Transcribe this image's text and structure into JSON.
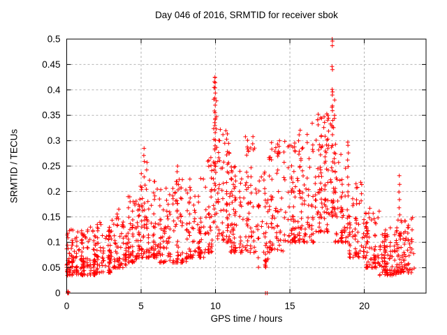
{
  "window": {
    "background": "#ffffff"
  },
  "chart_data": {
    "type": "scatter",
    "title": "Day 046 of 2016, SRMTID for receiver sbok",
    "xlabel": "GPS time / hours",
    "ylabel": "SRMTID / TECUs",
    "marker": "plus",
    "marker_size_px": 7,
    "seed": 46,
    "colors": {
      "marker": "#ff0000",
      "grid": "#b3b3b3",
      "axis": "#000000",
      "text": "#000000"
    },
    "axes": {
      "xlim": [
        0,
        24.15
      ],
      "ylim": [
        0,
        0.5
      ],
      "grid": true,
      "xticks": [
        {
          "v": 0,
          "label": "0"
        },
        {
          "v": 5,
          "label": "5"
        },
        {
          "v": 10,
          "label": "10"
        },
        {
          "v": 15,
          "label": "15"
        },
        {
          "v": 20,
          "label": "20"
        }
      ],
      "yticks": [
        {
          "v": 0,
          "label": "0"
        },
        {
          "v": 0.05,
          "label": "0.05"
        },
        {
          "v": 0.1,
          "label": "0.1"
        },
        {
          "v": 0.15,
          "label": "0.15"
        },
        {
          "v": 0.2,
          "label": "0.2"
        },
        {
          "v": 0.25,
          "label": "0.25"
        },
        {
          "v": 0.3,
          "label": "0.3"
        },
        {
          "v": 0.35,
          "label": "0.35"
        },
        {
          "v": 0.4,
          "label": "0.4"
        },
        {
          "v": 0.45,
          "label": "0.45"
        },
        {
          "v": 0.5,
          "label": "0.5"
        }
      ]
    },
    "point_bands": [
      [
        0.0,
        1.0,
        90,
        0.035,
        0.125,
        1.8
      ],
      [
        1.0,
        2.0,
        85,
        0.035,
        0.125,
        1.8
      ],
      [
        2.0,
        3.0,
        80,
        0.04,
        0.14,
        1.9
      ],
      [
        3.0,
        4.0,
        70,
        0.05,
        0.16,
        1.9
      ],
      [
        4.0,
        4.7,
        55,
        0.06,
        0.19,
        1.7
      ],
      [
        4.7,
        5.4,
        60,
        0.07,
        0.26,
        1.8
      ],
      [
        5.4,
        6.2,
        55,
        0.07,
        0.24,
        1.9
      ],
      [
        6.2,
        7.2,
        65,
        0.06,
        0.21,
        1.9
      ],
      [
        7.2,
        8.2,
        65,
        0.06,
        0.23,
        1.9
      ],
      [
        8.2,
        9.3,
        70,
        0.07,
        0.24,
        1.8
      ],
      [
        9.3,
        9.85,
        40,
        0.08,
        0.28,
        1.6
      ],
      [
        9.85,
        10.15,
        35,
        0.12,
        0.43,
        1.4
      ],
      [
        10.15,
        11.0,
        70,
        0.1,
        0.32,
        1.6
      ],
      [
        11.0,
        12.0,
        70,
        0.08,
        0.26,
        1.8
      ],
      [
        12.0,
        12.7,
        50,
        0.08,
        0.31,
        1.8
      ],
      [
        12.7,
        13.6,
        50,
        0.05,
        0.24,
        1.8
      ],
      [
        13.6,
        14.6,
        65,
        0.08,
        0.3,
        1.8
      ],
      [
        14.6,
        15.6,
        70,
        0.1,
        0.31,
        1.7
      ],
      [
        15.6,
        16.6,
        75,
        0.1,
        0.35,
        1.7
      ],
      [
        16.6,
        17.55,
        80,
        0.12,
        0.36,
        1.5
      ],
      [
        17.55,
        18.05,
        45,
        0.15,
        0.4,
        1.4
      ],
      [
        18.05,
        19.0,
        70,
        0.1,
        0.3,
        1.7
      ],
      [
        19.0,
        20.0,
        65,
        0.07,
        0.22,
        1.8
      ],
      [
        20.0,
        21.0,
        70,
        0.05,
        0.17,
        1.8
      ],
      [
        21.0,
        22.2,
        95,
        0.035,
        0.13,
        1.8
      ],
      [
        22.2,
        23.35,
        90,
        0.04,
        0.15,
        1.9
      ]
    ],
    "notable_points": [
      [
        0.06,
        0
      ],
      [
        0.09,
        0
      ],
      [
        0.12,
        0
      ],
      [
        0.08,
        0.003
      ],
      [
        0.11,
        0.002
      ],
      [
        13.36,
        0
      ],
      [
        13.48,
        0
      ],
      [
        9.96,
        0.425
      ],
      [
        9.98,
        0.414
      ],
      [
        9.97,
        0.404
      ],
      [
        9.99,
        0.394
      ],
      [
        9.96,
        0.384
      ],
      [
        9.98,
        0.37
      ],
      [
        9.97,
        0.355
      ],
      [
        9.99,
        0.344
      ],
      [
        9.96,
        0.33
      ],
      [
        9.98,
        0.316
      ],
      [
        10.0,
        0.301
      ],
      [
        9.97,
        0.29
      ],
      [
        10.32,
        0.322
      ],
      [
        10.5,
        0.312
      ],
      [
        10.28,
        0.3
      ],
      [
        10.62,
        0.295
      ],
      [
        17.84,
        0.5
      ],
      [
        17.86,
        0.496
      ],
      [
        17.85,
        0.487
      ],
      [
        17.83,
        0.446
      ],
      [
        17.86,
        0.44
      ],
      [
        17.84,
        0.401
      ],
      [
        17.87,
        0.396
      ],
      [
        17.85,
        0.39
      ],
      [
        17.83,
        0.366
      ],
      [
        17.86,
        0.359
      ],
      [
        17.88,
        0.34
      ],
      [
        17.82,
        0.33
      ],
      [
        16.9,
        0.352
      ],
      [
        16.87,
        0.341
      ],
      [
        17.3,
        0.347
      ],
      [
        17.33,
        0.336
      ],
      [
        17.28,
        0.326
      ],
      [
        5.2,
        0.285
      ],
      [
        5.18,
        0.271
      ],
      [
        5.22,
        0.259
      ],
      [
        7.45,
        0.25
      ],
      [
        7.42,
        0.239
      ],
      [
        12.52,
        0.308
      ],
      [
        12.5,
        0.294
      ],
      [
        12.55,
        0.282
      ],
      [
        14.3,
        0.3
      ],
      [
        14.27,
        0.289
      ],
      [
        18.9,
        0.291
      ],
      [
        18.93,
        0.276
      ],
      [
        18.88,
        0.262
      ],
      [
        18.91,
        0.249
      ],
      [
        22.35,
        0.231
      ],
      [
        22.37,
        0.214
      ],
      [
        22.33,
        0.199
      ],
      [
        22.36,
        0.184
      ],
      [
        22.34,
        0.168
      ],
      [
        22.38,
        0.154
      ],
      [
        0.3,
        0.125
      ],
      [
        1.6,
        0.13
      ],
      [
        2.3,
        0.135
      ],
      [
        3.5,
        0.165
      ]
    ]
  }
}
